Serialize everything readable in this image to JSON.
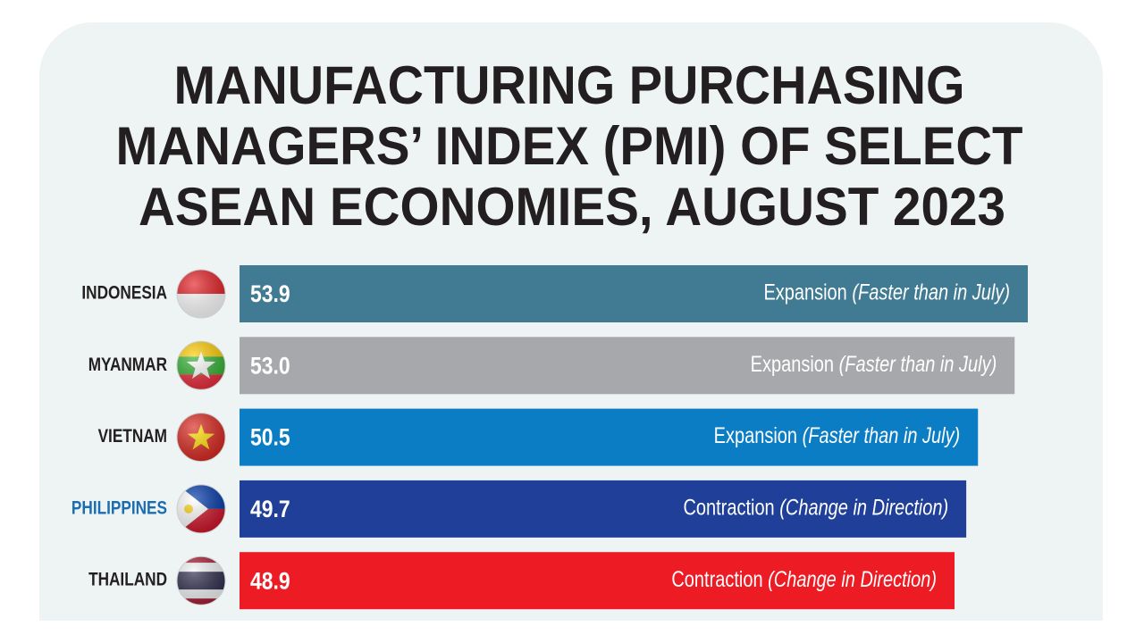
{
  "chart_data": {
    "type": "bar",
    "orientation": "horizontal",
    "title": [
      "MANUFACTURING PURCHASING",
      "MANAGERS’ INDEX (PMI) OF SELECT",
      "ASEAN ECONOMIES, AUGUST 2023"
    ],
    "categories": [
      "INDONESIA",
      "MYANMAR",
      "VIETNAM",
      "PHILIPPINES",
      "THAILAND"
    ],
    "values": [
      53.9,
      53.0,
      50.5,
      49.7,
      48.9
    ],
    "value_labels": [
      "53.9",
      "53.0",
      "50.5",
      "49.7",
      "48.9"
    ],
    "colors": [
      "#417b93",
      "#a6a8ab",
      "#0b7dc5",
      "#1f3f98",
      "#ed1c24"
    ],
    "label_colors": [
      "#231f20",
      "#231f20",
      "#231f20",
      "#1b6db3",
      "#231f20"
    ],
    "status": [
      "Expansion",
      "Expansion",
      "Expansion",
      "Contraction",
      "Contraction"
    ],
    "notes": [
      "(Faster than in July)",
      "(Faster than in July)",
      "(Faster than in July)",
      "(Change in Direction)",
      "(Change in Direction)"
    ]
  }
}
